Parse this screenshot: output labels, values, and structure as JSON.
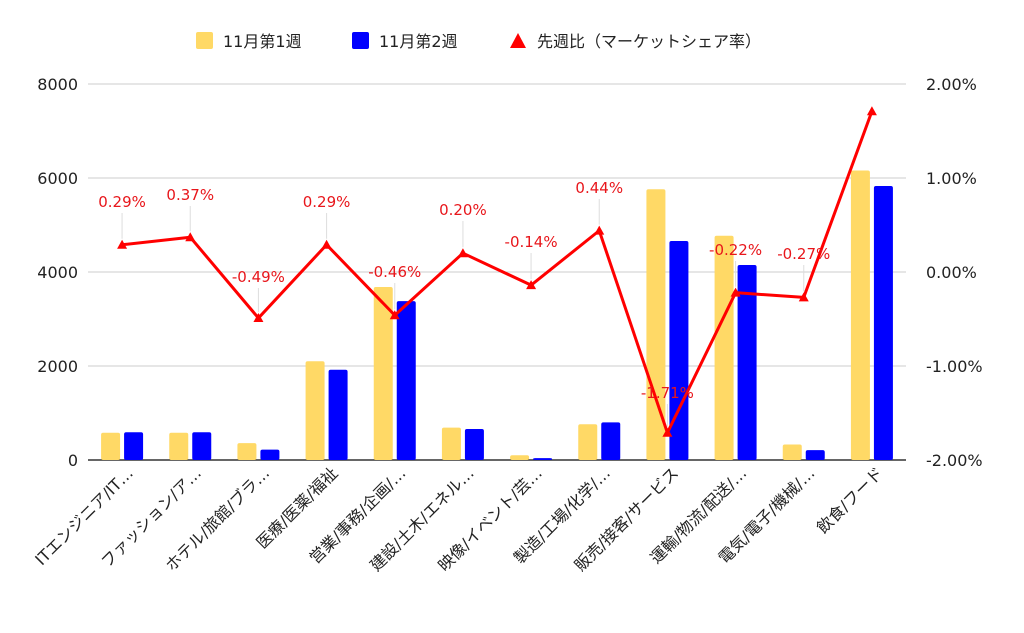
{
  "chart_data": {
    "type": "bar",
    "categories": [
      "ITエンジニア/IT…",
      "ファッション/ア…",
      "ホテル/旅館/ブラ…",
      "医療/医薬/福祉",
      "営業/事務/企画/…",
      "建設/土木/エネル…",
      "映像/イベント/芸…",
      "製造/工場/化学/…",
      "販売/接客/サービス",
      "運輸/物流/配送/…",
      "電気/電子/機械/…",
      "飲食/フード"
    ],
    "series": [
      {
        "name": "11月第1週",
        "type": "bar",
        "axis": "left",
        "color": "#ffd966",
        "values": [
          580,
          580,
          360,
          2100,
          3680,
          690,
          100,
          760,
          5760,
          4770,
          330,
          6160
        ]
      },
      {
        "name": "11月第2週",
        "type": "bar",
        "axis": "left",
        "color": "#0000ff",
        "values": [
          590,
          590,
          220,
          1920,
          3380,
          660,
          40,
          800,
          4660,
          4150,
          210,
          5830
        ]
      },
      {
        "name": "先週比（マーケットシェア率）",
        "type": "line",
        "axis": "right",
        "color": "#ff0000",
        "values": [
          0.29,
          0.37,
          -0.49,
          0.29,
          -0.46,
          0.2,
          -0.14,
          0.44,
          -1.71,
          -0.22,
          -0.27,
          1.71
        ],
        "labels": [
          "0.29%",
          "0.37%",
          "-0.49%",
          "0.29%",
          "-0.46%",
          "0.20%",
          "-0.14%",
          "0.44%",
          "-1.71%",
          "-0.22%",
          "-0.27%",
          ""
        ]
      }
    ],
    "y_left": {
      "ylim": [
        0,
        8000
      ],
      "ticks": [
        "0",
        "2000",
        "4000",
        "6000",
        "8000"
      ]
    },
    "y_right": {
      "ylim": [
        -2.0,
        2.0
      ],
      "ticks": [
        "-2.00%",
        "-1.00%",
        "0.00%",
        "1.00%",
        "2.00%"
      ]
    },
    "title": "",
    "xlabel": "",
    "ylabel": "",
    "grid": true,
    "legend_position": "top"
  }
}
